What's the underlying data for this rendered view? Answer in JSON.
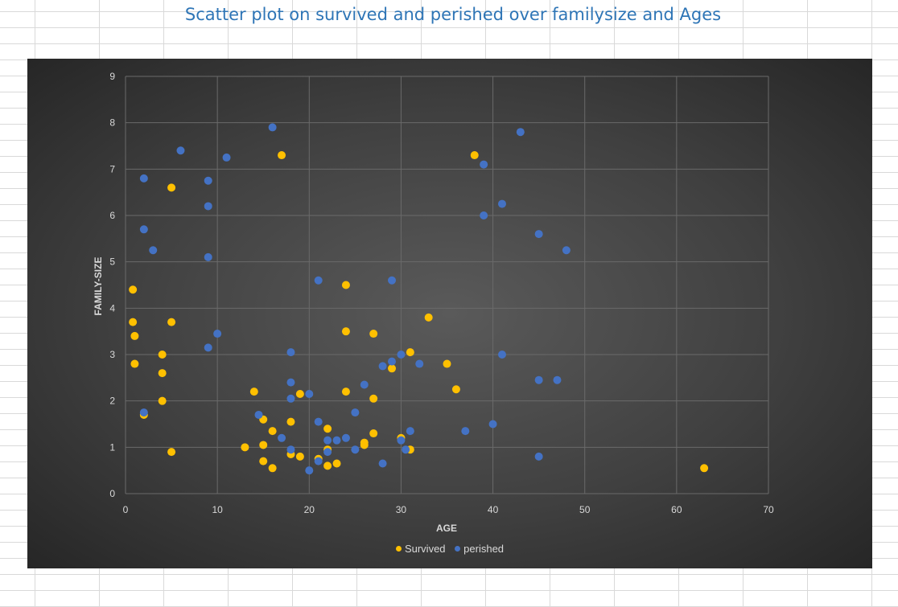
{
  "spreadsheet": {
    "grid": "on"
  },
  "chart_data": {
    "type": "scatter",
    "title": "Scatter plot on survived and perished over familysize and Ages",
    "xlabel": "AGE",
    "ylabel": "FAMILY-SIZE",
    "xlim": [
      0,
      70
    ],
    "ylim": [
      0,
      9
    ],
    "xticks": [
      "0",
      "10",
      "20",
      "30",
      "40",
      "50",
      "60",
      "70"
    ],
    "yticks": [
      "0",
      "1",
      "2",
      "3",
      "4",
      "5",
      "6",
      "7",
      "8",
      "9"
    ],
    "grid": true,
    "legend_position": "bottom",
    "background_color": "#404040",
    "series": [
      {
        "name": "Survived",
        "color": "#ffc000",
        "points": [
          [
            0.8,
            4.4
          ],
          [
            0.8,
            3.7
          ],
          [
            1,
            3.4
          ],
          [
            1,
            2.8
          ],
          [
            2,
            1.7
          ],
          [
            4,
            3
          ],
          [
            4,
            2.6
          ],
          [
            4,
            2
          ],
          [
            5,
            6.6
          ],
          [
            5,
            3.7
          ],
          [
            5,
            0.9
          ],
          [
            13,
            1
          ],
          [
            14,
            2.2
          ],
          [
            15,
            1.6
          ],
          [
            15,
            1.05
          ],
          [
            15,
            0.7
          ],
          [
            16,
            1.35
          ],
          [
            16,
            0.55
          ],
          [
            17,
            7.3
          ],
          [
            18,
            1.55
          ],
          [
            18,
            0.85
          ],
          [
            19,
            2.15
          ],
          [
            19,
            0.8
          ],
          [
            21,
            0.75
          ],
          [
            22,
            1.4
          ],
          [
            22,
            0.95
          ],
          [
            22,
            0.6
          ],
          [
            23,
            0.65
          ],
          [
            24,
            4.5
          ],
          [
            24,
            3.5
          ],
          [
            24,
            2.2
          ],
          [
            26,
            1.1
          ],
          [
            26,
            1.05
          ],
          [
            27,
            3.45
          ],
          [
            27,
            2.05
          ],
          [
            27,
            1.3
          ],
          [
            29,
            2.7
          ],
          [
            30,
            1.2
          ],
          [
            31,
            3.05
          ],
          [
            31,
            0.95
          ],
          [
            33,
            3.8
          ],
          [
            35,
            2.8
          ],
          [
            36,
            2.25
          ],
          [
            38,
            7.3
          ],
          [
            63,
            0.55
          ]
        ]
      },
      {
        "name": "perished",
        "color": "#4472c4",
        "points": [
          [
            2,
            6.8
          ],
          [
            2,
            5.7
          ],
          [
            2,
            1.75
          ],
          [
            3,
            5.25
          ],
          [
            6,
            7.4
          ],
          [
            9,
            6.75
          ],
          [
            9,
            6.2
          ],
          [
            9,
            5.1
          ],
          [
            9,
            3.15
          ],
          [
            10,
            3.45
          ],
          [
            11,
            7.25
          ],
          [
            14.5,
            1.7
          ],
          [
            16,
            7.9
          ],
          [
            17,
            1.2
          ],
          [
            18,
            3.05
          ],
          [
            18,
            2.4
          ],
          [
            18,
            2.05
          ],
          [
            18,
            0.95
          ],
          [
            20,
            2.15
          ],
          [
            20,
            0.5
          ],
          [
            21,
            4.6
          ],
          [
            21,
            1.55
          ],
          [
            21,
            0.7
          ],
          [
            22,
            1.15
          ],
          [
            22,
            0.9
          ],
          [
            23,
            1.15
          ],
          [
            24,
            1.2
          ],
          [
            25,
            1.75
          ],
          [
            25,
            0.95
          ],
          [
            26,
            2.35
          ],
          [
            28,
            2.75
          ],
          [
            28,
            0.65
          ],
          [
            29,
            4.6
          ],
          [
            29,
            2.85
          ],
          [
            30,
            3
          ],
          [
            30,
            1.15
          ],
          [
            30.5,
            0.95
          ],
          [
            31,
            1.35
          ],
          [
            32,
            2.8
          ],
          [
            37,
            1.35
          ],
          [
            39,
            7.1
          ],
          [
            39,
            6
          ],
          [
            40,
            1.5
          ],
          [
            41,
            6.25
          ],
          [
            41,
            3
          ],
          [
            43,
            7.8
          ],
          [
            45,
            5.6
          ],
          [
            45,
            2.45
          ],
          [
            45,
            0.8
          ],
          [
            47,
            2.45
          ],
          [
            48,
            5.25
          ]
        ]
      }
    ]
  }
}
